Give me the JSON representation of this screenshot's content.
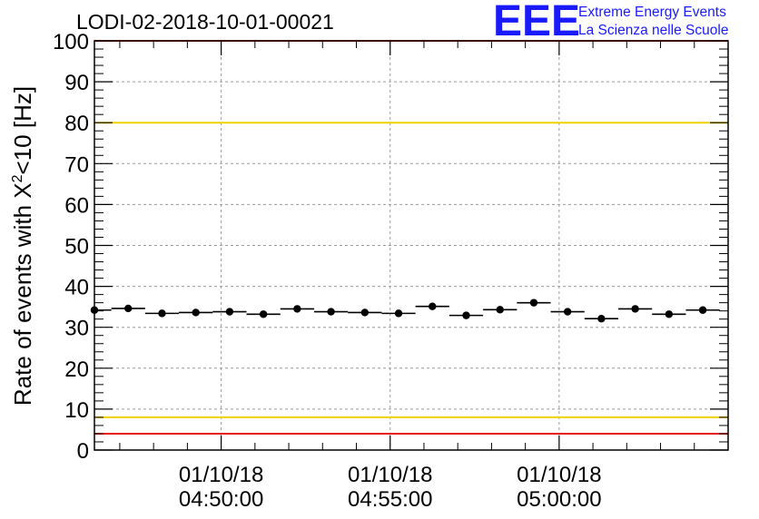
{
  "chart_data": {
    "type": "scatter",
    "title": "LODI-02-2018-10-01-00021",
    "ylabel_main": "Rate of events with X",
    "ylabel_sup": "2",
    "ylabel_tail": "<10 [Hz]",
    "ylim": [
      0,
      100
    ],
    "yticks": [
      0,
      10,
      20,
      30,
      40,
      50,
      60,
      70,
      80,
      90,
      100
    ],
    "xlim_minutes": [
      -3.75,
      15
    ],
    "xticks": [
      {
        "at_minutes": 0,
        "date": "01/10/18",
        "time": "04:50:00"
      },
      {
        "at_minutes": 5,
        "date": "01/10/18",
        "time": "04:55:00"
      },
      {
        "at_minutes": 10,
        "date": "01/10/18",
        "time": "05:00:00"
      }
    ],
    "grid": true,
    "bin_width_minutes": 1,
    "points": [
      {
        "x": -3.75,
        "y": 34.2
      },
      {
        "x": -2.75,
        "y": 34.6
      },
      {
        "x": -1.75,
        "y": 33.4
      },
      {
        "x": -0.75,
        "y": 33.6
      },
      {
        "x": 0.25,
        "y": 33.8
      },
      {
        "x": 1.25,
        "y": 33.2
      },
      {
        "x": 2.25,
        "y": 34.5
      },
      {
        "x": 3.25,
        "y": 33.8
      },
      {
        "x": 4.25,
        "y": 33.6
      },
      {
        "x": 5.25,
        "y": 33.4
      },
      {
        "x": 6.25,
        "y": 35.1
      },
      {
        "x": 7.25,
        "y": 32.9
      },
      {
        "x": 8.25,
        "y": 34.3
      },
      {
        "x": 9.25,
        "y": 36.0
      },
      {
        "x": 10.25,
        "y": 33.8
      },
      {
        "x": 11.25,
        "y": 32.1
      },
      {
        "x": 12.25,
        "y": 34.5
      },
      {
        "x": 13.25,
        "y": 33.2
      },
      {
        "x": 14.25,
        "y": 34.2
      }
    ],
    "reference_lines": [
      {
        "y": 80,
        "color": "#f0d000"
      },
      {
        "y": 8,
        "color": "#f0d000"
      },
      {
        "y": 100,
        "color": "#e8191b"
      },
      {
        "y": 4,
        "color": "#e8191b"
      }
    ]
  },
  "logo": {
    "text": "EEE",
    "line1": "Extreme Energy Events",
    "line2": "La Scienza nelle Scuole",
    "color": "#1a1aff"
  }
}
